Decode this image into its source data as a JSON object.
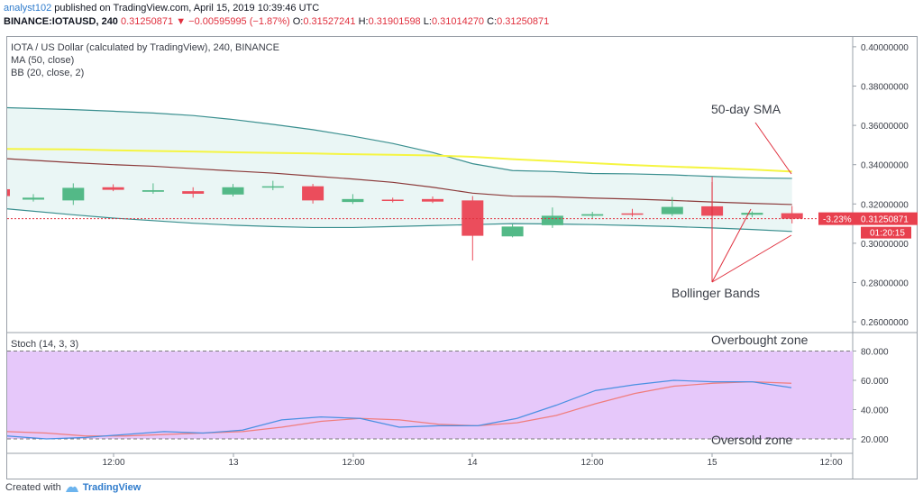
{
  "header": {
    "author": "analyst102",
    "published_text": " published on TradingView.com, April 15, 2019 10:39:46 UTC",
    "symbol": "BINANCE:IOTAUSD, 240",
    "last": "0.31250871",
    "arrow": "▼",
    "change": "−0.00595995 (−1.87%)",
    "o_label": "O:",
    "o_val": "0.31527241",
    "h_label": "H:",
    "h_val": "0.31901598",
    "l_label": "L:",
    "l_val": "0.31014270",
    "c_label": "C:",
    "c_val": "0.31250871"
  },
  "legend": {
    "title": "IOTA / US Dollar (calculated by TradingView), 240, BINANCE",
    "ma": "MA (50, close)",
    "bb": "BB (20, close, 2)",
    "stoch": "Stoch (14, 3, 3)"
  },
  "annotations": {
    "sma": "50-day SMA",
    "bb": "Bollinger Bands",
    "overbought": "Overbought zone",
    "oversold": "Oversold zone"
  },
  "price_badge": {
    "pct": "-3.23%",
    "price": "0.31250871",
    "timer": "01:20:15"
  },
  "footer": {
    "created": "Created with",
    "brand": "TradingView"
  },
  "colors": {
    "up": "#53b987",
    "down": "#eb4d5c",
    "ma": "#f5f542",
    "bb_basis": "#8b3a3a",
    "bb_band": "#3a8f8f",
    "bb_fill": "#eaf6f5",
    "stoch_k": "#4a90e2",
    "stoch_d": "#f07d7d",
    "stoch_bg": "#e6c8fa"
  },
  "chart_data": [
    {
      "type": "candlestick",
      "title": "IOTA / US Dollar (calculated by TradingView), 240, BINANCE",
      "ylim": [
        0.255,
        0.405
      ],
      "y_ticks": [
        "0.40000000",
        "0.38000000",
        "0.36000000",
        "0.34000000",
        "0.32000000",
        "0.30000000",
        "0.28000000",
        "0.26000000"
      ],
      "x_ticks": [
        "12:00",
        "13",
        "12:00",
        "14",
        "12:00",
        "15",
        "12:00"
      ],
      "candles": [
        {
          "o": 0.3222,
          "h": 0.325,
          "l": 0.3212,
          "c": 0.3232
        },
        {
          "o": 0.3218,
          "h": 0.3305,
          "l": 0.3195,
          "c": 0.3282
        },
        {
          "o": 0.3285,
          "h": 0.33,
          "l": 0.3265,
          "c": 0.3272
        },
        {
          "o": 0.3262,
          "h": 0.3305,
          "l": 0.3252,
          "c": 0.327
        },
        {
          "o": 0.3265,
          "h": 0.3285,
          "l": 0.3232,
          "c": 0.3252
        },
        {
          "o": 0.3248,
          "h": 0.3302,
          "l": 0.3238,
          "c": 0.3285
        },
        {
          "o": 0.3285,
          "h": 0.3318,
          "l": 0.327,
          "c": 0.329
        },
        {
          "o": 0.329,
          "h": 0.3302,
          "l": 0.3202,
          "c": 0.3218
        },
        {
          "o": 0.321,
          "h": 0.325,
          "l": 0.32,
          "c": 0.3225
        },
        {
          "o": 0.3222,
          "h": 0.3232,
          "l": 0.3208,
          "c": 0.322
        },
        {
          "o": 0.3225,
          "h": 0.3238,
          "l": 0.3205,
          "c": 0.3212
        },
        {
          "o": 0.3218,
          "h": 0.324,
          "l": 0.2912,
          "c": 0.3038
        },
        {
          "o": 0.3035,
          "h": 0.3098,
          "l": 0.303,
          "c": 0.3085
        },
        {
          "o": 0.3092,
          "h": 0.3182,
          "l": 0.3078,
          "c": 0.314
        },
        {
          "o": 0.314,
          "h": 0.316,
          "l": 0.3128,
          "c": 0.3148
        },
        {
          "o": 0.3152,
          "h": 0.3175,
          "l": 0.3135,
          "c": 0.315
        },
        {
          "o": 0.3148,
          "h": 0.3235,
          "l": 0.3138,
          "c": 0.3185
        },
        {
          "o": 0.3188,
          "h": 0.3338,
          "l": 0.3118,
          "c": 0.314
        },
        {
          "o": 0.3145,
          "h": 0.3162,
          "l": 0.3132,
          "c": 0.3155
        },
        {
          "o": 0.3153,
          "h": 0.319,
          "l": 0.3101,
          "c": 0.3125
        }
      ],
      "series": [
        {
          "name": "MA (50, close)",
          "values": [
            0.348,
            0.3478,
            0.3473,
            0.347,
            0.3467,
            0.3463,
            0.346,
            0.3457,
            0.3453,
            0.345,
            0.3447,
            0.344,
            0.3428,
            0.3418,
            0.3408,
            0.3398,
            0.339,
            0.3383,
            0.3375,
            0.3365
          ]
        },
        {
          "name": "BB (20, close, 2)",
          "values": [
            0.343,
            0.341,
            0.34,
            0.3392,
            0.338,
            0.3368,
            0.3357,
            0.3342,
            0.3327,
            0.331,
            0.3285,
            0.3255,
            0.324,
            0.3237,
            0.323,
            0.3225,
            0.3218,
            0.321,
            0.3203,
            0.3197
          ]
        },
        {
          "name": "BB upper",
          "values": [
            0.369,
            0.368,
            0.3672,
            0.3663,
            0.365,
            0.363,
            0.3605,
            0.3578,
            0.3545,
            0.3508,
            0.3462,
            0.3405,
            0.337,
            0.3365,
            0.3355,
            0.3353,
            0.3348,
            0.334,
            0.3333,
            0.333
          ]
        },
        {
          "name": "BB lower",
          "values": [
            0.3175,
            0.3145,
            0.3128,
            0.3115,
            0.3102,
            0.3092,
            0.3085,
            0.308,
            0.308,
            0.3085,
            0.309,
            0.3095,
            0.31,
            0.3098,
            0.3095,
            0.309,
            0.3085,
            0.3078,
            0.307,
            0.306
          ]
        }
      ],
      "current_price": 0.31250871
    },
    {
      "type": "line",
      "title": "Stoch (14, 3, 3)",
      "ylim": [
        12,
        92
      ],
      "y_ticks": [
        "80.000",
        "60.000",
        "40.000",
        "20.000"
      ],
      "bands": [
        20,
        80
      ],
      "series": [
        {
          "name": "%K",
          "values": [
            22,
            20,
            21,
            23,
            25,
            24,
            26,
            33,
            35,
            34,
            28,
            29,
            29,
            34,
            43,
            53,
            57,
            60,
            59,
            59,
            55
          ]
        },
        {
          "name": "%D",
          "values": [
            25,
            24,
            22,
            22,
            23,
            24,
            25,
            28,
            32,
            34,
            33,
            30,
            29,
            31,
            36,
            44,
            51,
            56,
            58,
            59,
            58
          ]
        }
      ]
    }
  ]
}
